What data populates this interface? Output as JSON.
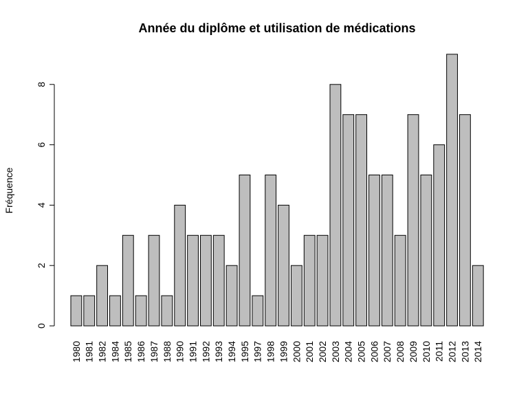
{
  "chart_data": {
    "type": "bar",
    "title": "Année du diplôme et utilisation de médications",
    "xlabel": "",
    "ylabel": "Fréquence",
    "categories": [
      "1980",
      "1981",
      "1982",
      "1984",
      "1985",
      "1986",
      "1987",
      "1988",
      "1990",
      "1991",
      "1992",
      "1993",
      "1994",
      "1995",
      "1997",
      "1998",
      "1999",
      "2000",
      "2001",
      "2002",
      "2003",
      "2004",
      "2005",
      "2006",
      "2007",
      "2008",
      "2009",
      "2010",
      "2011",
      "2012",
      "2013",
      "2014"
    ],
    "values": [
      1,
      1,
      2,
      1,
      3,
      1,
      3,
      1,
      4,
      3,
      3,
      3,
      2,
      5,
      1,
      5,
      4,
      2,
      3,
      3,
      8,
      7,
      7,
      5,
      5,
      3,
      7,
      5,
      6,
      9,
      7,
      2
    ],
    "ylim": [
      0,
      9
    ],
    "yticks": [
      0,
      2,
      4,
      6,
      8
    ],
    "grid": false,
    "bar_color": "#bebebe",
    "edge_color": "#000000"
  }
}
